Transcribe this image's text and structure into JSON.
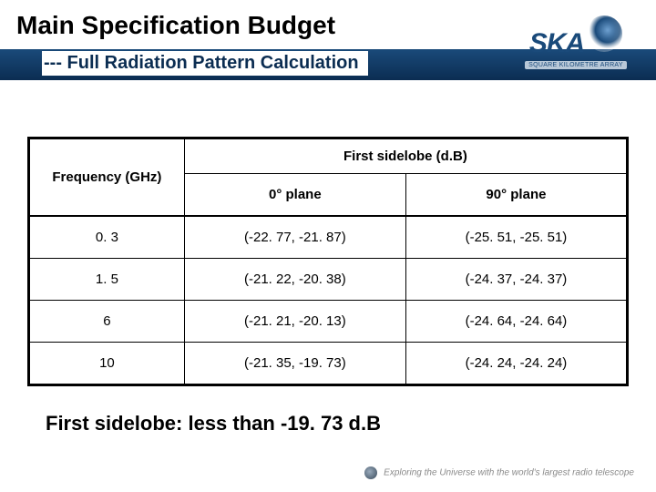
{
  "header": {
    "title": "Main Specification Budget",
    "subtitle": "--- Full Radiation Pattern Calculation",
    "logo_text": "SKA",
    "logo_subtext": "SQUARE KILOMETRE ARRAY"
  },
  "table": {
    "col_freq_label": "Frequency (GHz)",
    "group_header": "First sidelobe (d.B)",
    "col_plane0_label": "0° plane",
    "col_plane90_label": "90° plane",
    "rows": [
      {
        "freq": "0. 3",
        "p0": "(-22. 77, -21. 87)",
        "p90": "(-25. 51, -25. 51)"
      },
      {
        "freq": "1. 5",
        "p0": "(-21. 22, -20. 38)",
        "p90": "(-24. 37, -24. 37)"
      },
      {
        "freq": "6",
        "p0": "(-21. 21, -20. 13)",
        "p90": "(-24. 64, -24. 64)"
      },
      {
        "freq": "10",
        "p0": "(-21. 35, -19. 73)",
        "p90": "(-24. 24, -24. 24)"
      }
    ]
  },
  "summary": "First sidelobe: less than -19. 73 d.B",
  "footer": "Exploring the Universe with the world's largest radio telescope"
}
